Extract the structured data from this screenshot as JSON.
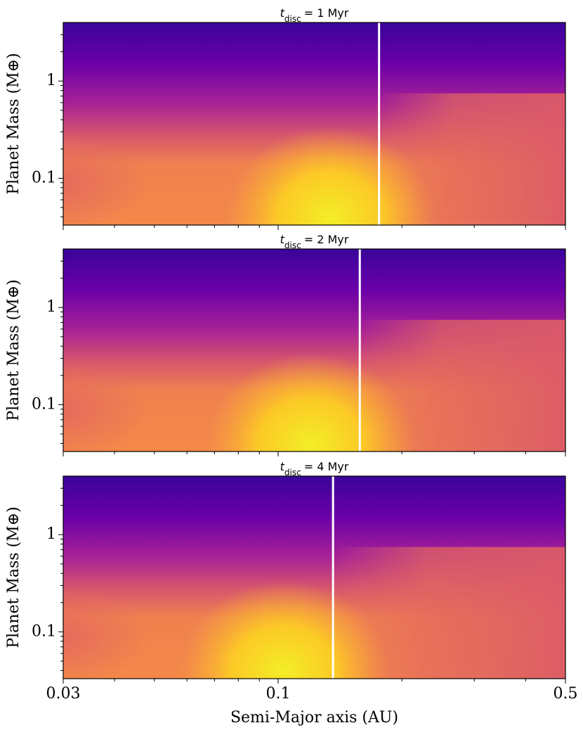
{
  "chart_data": [
    {
      "type": "contour",
      "title_var": "t",
      "title_sub": "disc",
      "title_rest": "= 1 Myr",
      "ylabel": "Planet Mass (M⊕)",
      "xlog": true,
      "ylog": true,
      "xlim": [
        0.03,
        0.5
      ],
      "ylim": [
        0.033,
        4
      ],
      "xticks": [
        0.03,
        0.1,
        0.5
      ],
      "yticks": [
        0.1,
        1
      ],
      "x_minor_ticks": [
        0.04,
        0.05,
        0.06,
        0.07,
        0.08,
        0.09,
        0.2,
        0.3,
        0.4
      ],
      "y_minor_ticks": [
        0.04,
        0.05,
        0.06,
        0.07,
        0.08,
        0.09,
        0.2,
        0.3,
        0.4,
        0.5,
        0.6,
        0.7,
        0.8,
        0.9,
        2,
        3
      ],
      "vline": 0.176,
      "vline_color": "#ffffff"
    },
    {
      "type": "contour",
      "title_var": "t",
      "title_sub": "disc",
      "title_rest": "= 2 Myr",
      "ylabel": "Planet Mass (M⊕)",
      "xlog": true,
      "ylog": true,
      "xlim": [
        0.03,
        0.5
      ],
      "ylim": [
        0.033,
        4
      ],
      "xticks": [
        0.03,
        0.1,
        0.5
      ],
      "yticks": [
        0.1,
        1
      ],
      "x_minor_ticks": [
        0.04,
        0.05,
        0.06,
        0.07,
        0.08,
        0.09,
        0.2,
        0.3,
        0.4
      ],
      "y_minor_ticks": [
        0.04,
        0.05,
        0.06,
        0.07,
        0.08,
        0.09,
        0.2,
        0.3,
        0.4,
        0.5,
        0.6,
        0.7,
        0.8,
        0.9,
        2,
        3
      ],
      "vline": 0.158,
      "vline_color": "#ffffff"
    },
    {
      "type": "contour",
      "title_var": "t",
      "title_sub": "disc",
      "title_rest": "= 4 Myr",
      "ylabel": "Planet Mass (M⊕)",
      "xlabel": "Semi-Major axis (AU)",
      "xlog": true,
      "ylog": true,
      "xlim": [
        0.03,
        0.5
      ],
      "ylim": [
        0.033,
        4
      ],
      "xticks": [
        0.03,
        0.1,
        0.5
      ],
      "yticks": [
        0.1,
        1
      ],
      "x_minor_ticks": [
        0.04,
        0.05,
        0.06,
        0.07,
        0.08,
        0.09,
        0.2,
        0.3,
        0.4
      ],
      "y_minor_ticks": [
        0.04,
        0.05,
        0.06,
        0.07,
        0.08,
        0.09,
        0.2,
        0.3,
        0.4,
        0.5,
        0.6,
        0.7,
        0.8,
        0.9,
        2,
        3
      ],
      "vline": 0.136,
      "vline_color": "#ffffff"
    }
  ]
}
